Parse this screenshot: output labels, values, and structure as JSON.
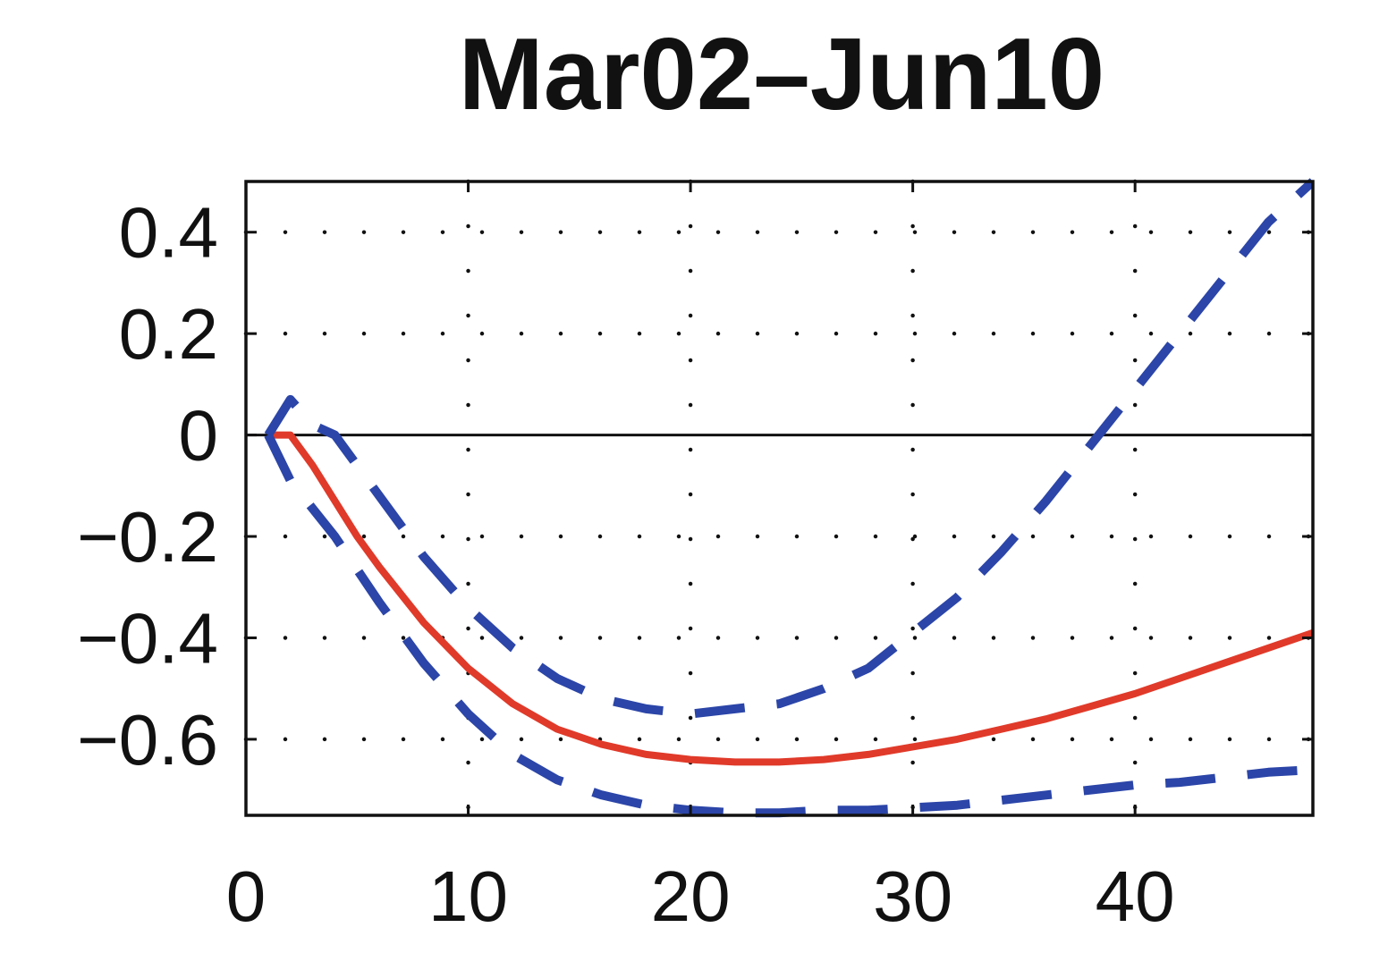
{
  "chart_data": {
    "type": "line",
    "title": "Mar02–Jun10",
    "xlabel": "",
    "ylabel": "",
    "xlim": [
      0,
      48
    ],
    "ylim": [
      -0.75,
      0.5
    ],
    "x_ticks": [
      0,
      10,
      20,
      30,
      40
    ],
    "x_tick_labels": [
      "0",
      "10",
      "20",
      "30",
      "40"
    ],
    "y_ticks": [
      0.4,
      0.2,
      0,
      -0.2,
      -0.4,
      -0.6
    ],
    "y_tick_labels": [
      "0.4",
      "0.2",
      "0",
      "−0.2",
      "−0.4",
      "−0.6"
    ],
    "grid": "dotted",
    "zero_line": true,
    "series": [
      {
        "style": "solid",
        "color": "#e03a2a",
        "x": [
          1,
          2,
          3,
          4,
          5,
          6,
          8,
          10,
          12,
          14,
          16,
          18,
          20,
          22,
          24,
          26,
          28,
          30,
          32,
          34,
          36,
          38,
          40,
          42,
          44,
          46,
          48
        ],
        "y": [
          0,
          0,
          -0.06,
          -0.13,
          -0.2,
          -0.26,
          -0.37,
          -0.46,
          -0.53,
          -0.58,
          -0.61,
          -0.63,
          -0.64,
          -0.645,
          -0.645,
          -0.64,
          -0.63,
          -0.615,
          -0.6,
          -0.58,
          -0.56,
          -0.535,
          -0.51,
          -0.48,
          -0.45,
          -0.42,
          -0.39
        ]
      },
      {
        "style": "dashed",
        "color": "#2b45a8",
        "x": [
          1,
          2,
          3,
          4,
          5,
          6,
          8,
          10,
          12,
          14,
          16,
          18,
          20,
          22,
          24,
          26,
          28,
          30,
          32,
          34,
          36,
          38,
          40,
          42,
          44,
          46,
          48
        ],
        "y": [
          0,
          0.07,
          0.02,
          0,
          -0.06,
          -0.12,
          -0.24,
          -0.34,
          -0.42,
          -0.48,
          -0.52,
          -0.54,
          -0.55,
          -0.54,
          -0.53,
          -0.5,
          -0.46,
          -0.39,
          -0.32,
          -0.23,
          -0.13,
          -0.02,
          0.09,
          0.2,
          0.31,
          0.42,
          0.5
        ]
      },
      {
        "style": "dashed",
        "color": "#2b45a8",
        "x": [
          1,
          2,
          4,
          6,
          8,
          10,
          12,
          14,
          16,
          18,
          20,
          22,
          24,
          26,
          28,
          30,
          32,
          34,
          36,
          38,
          40,
          42,
          44,
          46,
          48
        ],
        "y": [
          0,
          -0.09,
          -0.2,
          -0.33,
          -0.45,
          -0.55,
          -0.63,
          -0.68,
          -0.71,
          -0.73,
          -0.74,
          -0.745,
          -0.745,
          -0.74,
          -0.74,
          -0.735,
          -0.73,
          -0.72,
          -0.71,
          -0.7,
          -0.69,
          -0.685,
          -0.675,
          -0.665,
          -0.66
        ]
      }
    ]
  }
}
